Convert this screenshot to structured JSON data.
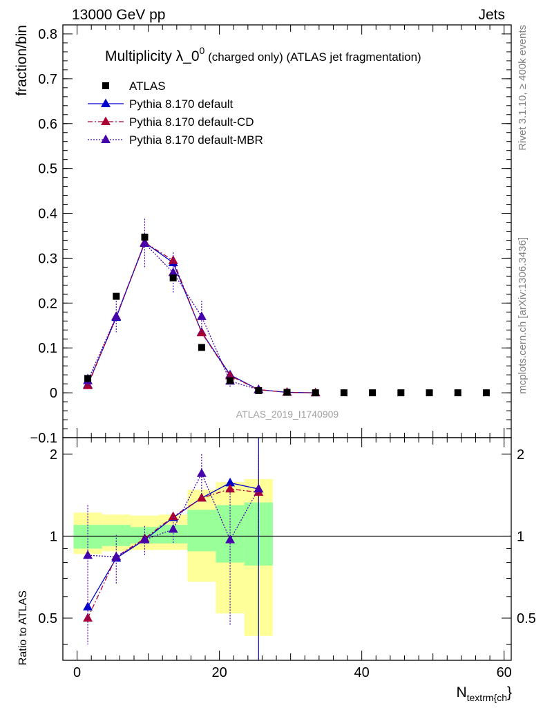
{
  "header": {
    "energy_label": "13000 GeV pp",
    "process_label": "Jets"
  },
  "side_labels": {
    "rivet": "Rivet 3.1.10, ≥ 400k events",
    "mcplots": "mcplots.cern.ch [arXiv:1306.3436]"
  },
  "watermark": "ATLAS_2019_I1740909",
  "colors": {
    "data": "#000000",
    "default": "#0000cc",
    "default_cd": "#aa0033",
    "default_mbr": "#4400aa",
    "band_stat": "#99ff99",
    "band_total": "#ffff99"
  },
  "chart_data": [
    {
      "type": "scatter",
      "panel": "main",
      "title": "Multiplicity λ_0",
      "title_sup": "0",
      "title_suffix": " (charged only) (ATLAS jet fragmentation)",
      "ylabel": "fraction/bin",
      "xlim": [
        -2,
        61
      ],
      "ylim": [
        -0.1,
        0.82
      ],
      "yticks": [
        -0.1,
        0,
        0.1,
        0.2,
        0.3,
        0.4,
        0.5,
        0.6,
        0.7,
        0.8
      ],
      "ytick_labels": [
        "−0.1",
        "0",
        "0.1",
        "0.2",
        "0.3",
        "0.4",
        "0.5",
        "0.6",
        "0.7",
        "0.8"
      ],
      "legend_position": "top-left",
      "series": [
        {
          "name": "ATLAS",
          "style": "square-markers",
          "x": [
            1.5,
            5.5,
            9.5,
            13.5,
            17.5,
            21.5,
            25.5,
            29.5,
            33.5,
            37.5,
            41.5,
            45.5,
            49.5,
            53.5,
            57.5
          ],
          "y": [
            0.032,
            0.215,
            0.347,
            0.256,
            0.101,
            0.027,
            0.005,
            0.001,
            0.0,
            0.0,
            0.0,
            0.0,
            0.0,
            0.0,
            0.0
          ]
        },
        {
          "name": "Pythia 8.170 default",
          "style": "solid",
          "x": [
            1.5,
            5.5,
            9.5,
            13.5,
            17.5,
            21.5,
            25.5,
            29.5,
            33.5
          ],
          "y": [
            0.018,
            0.168,
            0.335,
            0.29,
            0.135,
            0.04,
            0.007,
            0.001,
            0.0
          ],
          "err": [
            0.002,
            0.004,
            0.005,
            0.005,
            0.004,
            0.003,
            0.002,
            0.001,
            0.0
          ]
        },
        {
          "name": "Pythia 8.170 default-CD",
          "style": "dash-dot",
          "x": [
            1.5,
            5.5,
            9.5,
            13.5,
            17.5,
            21.5,
            25.5,
            29.5,
            33.5
          ],
          "y": [
            0.016,
            0.17,
            0.335,
            0.295,
            0.134,
            0.038,
            0.007,
            0.001,
            0.0
          ],
          "err": [
            0.002,
            0.004,
            0.005,
            0.005,
            0.004,
            0.003,
            0.002,
            0.001,
            0.0
          ]
        },
        {
          "name": "Pythia 8.170 default-MBR",
          "style": "dotted",
          "x": [
            1.5,
            5.5,
            9.5,
            13.5,
            17.5,
            21.5,
            25.5
          ],
          "y": [
            0.027,
            0.17,
            0.333,
            0.268,
            0.17,
            0.026,
            0.007
          ],
          "err": [
            0.015,
            0.035,
            0.055,
            0.045,
            0.035,
            0.015,
            0.003
          ]
        }
      ]
    },
    {
      "type": "scatter",
      "panel": "ratio",
      "ylabel": "Ratio to ATLAS",
      "xlabel": "N",
      "xlabel_sub": "textrm{ch",
      "xlabel_suffix": "}",
      "xlim": [
        -2,
        61
      ],
      "ylim": [
        0.35,
        2.3
      ],
      "yscale": "log",
      "xticks": [
        0,
        20,
        40,
        60
      ],
      "yticks": [
        0.5,
        1,
        2
      ],
      "ytick_labels": [
        "0.5",
        "1",
        "2"
      ],
      "bands": {
        "edges": [
          -0.5,
          3.5,
          7.5,
          11.5,
          15.5,
          19.5,
          23.5,
          27.5
        ],
        "stat_low": [
          0.9,
          0.92,
          0.94,
          0.94,
          0.88,
          0.8,
          0.78
        ],
        "stat_high": [
          1.1,
          1.1,
          1.08,
          1.1,
          1.25,
          1.3,
          1.33
        ],
        "total_low": [
          0.86,
          0.88,
          0.89,
          0.89,
          0.68,
          0.52,
          0.43
        ],
        "total_high": [
          1.22,
          1.2,
          1.19,
          1.2,
          1.48,
          1.58,
          1.62
        ]
      },
      "series": [
        {
          "name": "Pythia 8.170 default",
          "style": "solid",
          "x": [
            1.5,
            5.5,
            9.5,
            13.5,
            17.5,
            21.5,
            25.5
          ],
          "y": [
            0.55,
            0.83,
            0.97,
            1.17,
            1.38,
            1.57,
            1.49
          ],
          "err": [
            0.02,
            0.02,
            0.02,
            0.02,
            0.03,
            0.05,
            1.2
          ]
        },
        {
          "name": "Pythia 8.170 default-CD",
          "style": "dash-dot",
          "x": [
            1.5,
            5.5,
            9.5,
            13.5,
            17.5,
            21.5,
            25.5
          ],
          "y": [
            0.5,
            0.84,
            0.98,
            1.18,
            1.38,
            1.49,
            1.45
          ],
          "err": [
            0.02,
            0.02,
            0.02,
            0.02,
            0.03,
            0.05,
            0.05
          ]
        },
        {
          "name": "Pythia 8.170 default-MBR",
          "style": "dotted",
          "x": [
            1.5,
            5.5,
            9.5,
            13.5,
            17.5,
            21.5,
            25.5
          ],
          "y": [
            0.85,
            0.84,
            0.97,
            1.06,
            1.7,
            0.97,
            1.49
          ],
          "err": [
            0.45,
            0.17,
            0.12,
            0.12,
            0.3,
            0.5,
            0.5
          ]
        }
      ]
    }
  ]
}
